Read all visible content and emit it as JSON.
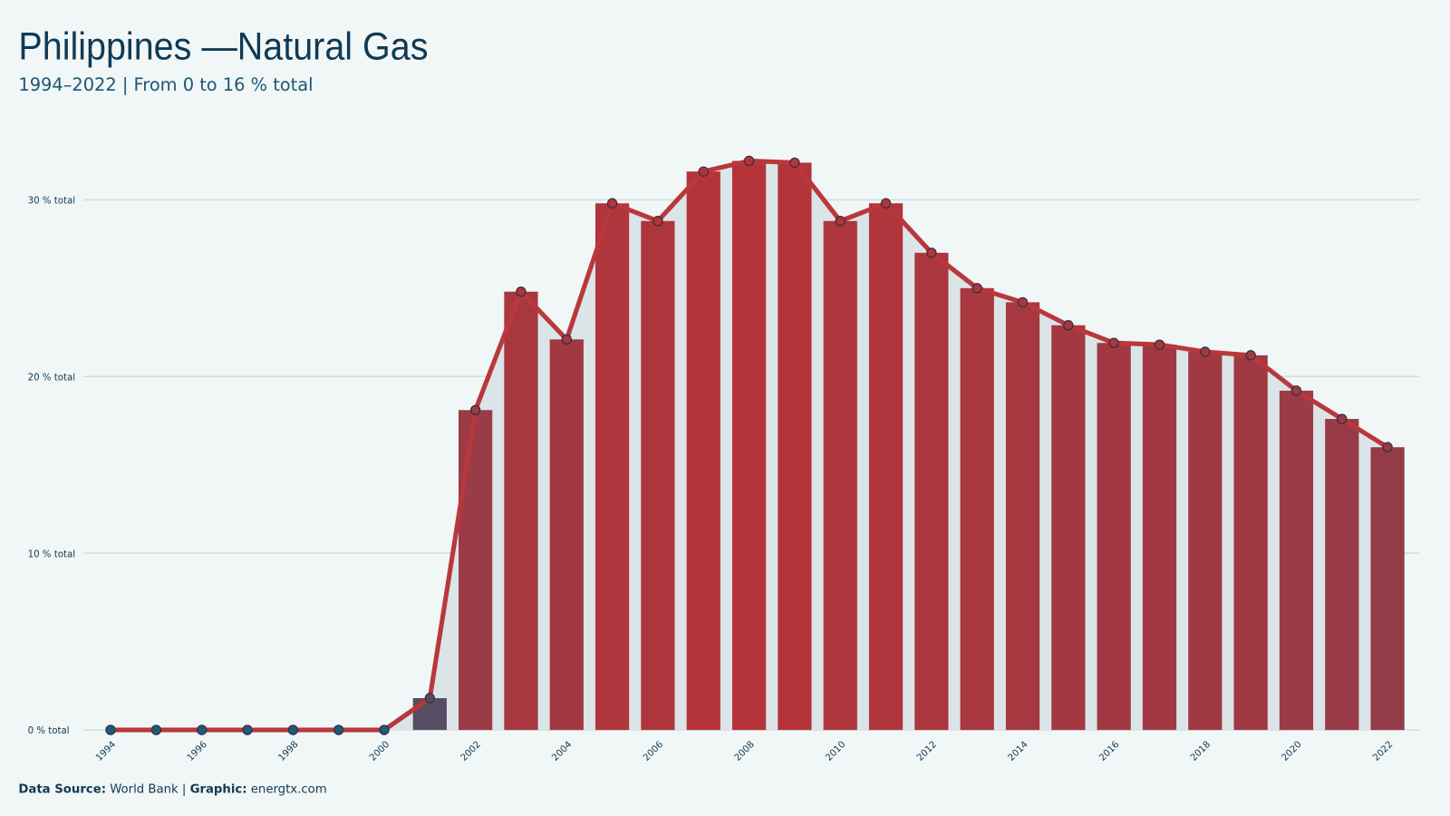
{
  "chart_data": {
    "type": "bar",
    "title": "Philippines —Natural Gas",
    "subtitle": "1994–2022 | From 0 to 16 % total",
    "x": [
      1994,
      1995,
      1996,
      1997,
      1998,
      1999,
      2000,
      2001,
      2002,
      2003,
      2004,
      2005,
      2006,
      2007,
      2008,
      2009,
      2010,
      2011,
      2012,
      2013,
      2014,
      2015,
      2016,
      2017,
      2018,
      2019,
      2020,
      2021,
      2022
    ],
    "values": [
      0,
      0,
      0,
      0,
      0,
      0,
      0,
      1.8,
      18.1,
      24.8,
      22.1,
      29.8,
      28.8,
      31.6,
      32.2,
      32.1,
      28.8,
      29.8,
      27.0,
      25.0,
      24.2,
      22.9,
      21.9,
      21.8,
      21.4,
      21.2,
      19.2,
      17.6,
      16.0
    ],
    "xlim": [
      1993.4,
      2022.7
    ],
    "xticks": [
      1994,
      1996,
      1998,
      2000,
      2002,
      2004,
      2006,
      2008,
      2010,
      2012,
      2014,
      2016,
      2018,
      2020,
      2022
    ],
    "ylim": [
      0,
      33.4
    ],
    "yticks": [
      {
        "value": 0,
        "label": "0 % total"
      },
      {
        "value": 10,
        "label": "10 % total"
      },
      {
        "value": 20,
        "label": "20 % total"
      },
      {
        "value": 30,
        "label": "30 % total"
      }
    ],
    "grid": true,
    "color_low": "#1f5a7a",
    "color_high": "#b5343a",
    "line_color": "#b8383c",
    "area_color": "#dbe5e8",
    "source_label": "Data Source:",
    "source": "World Bank |",
    "graphic_label": "Graphic:",
    "graphic": "energtx.com"
  }
}
